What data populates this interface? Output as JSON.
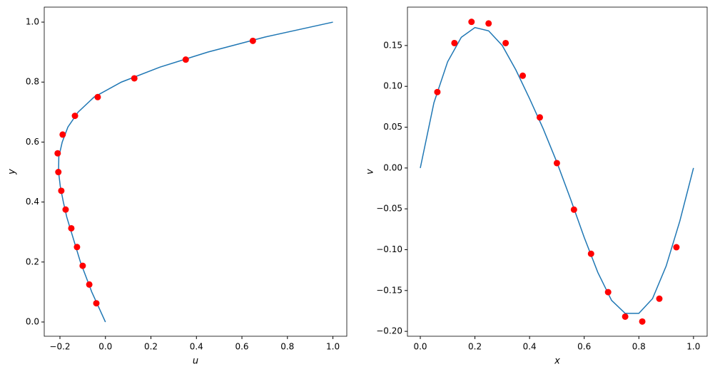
{
  "chart_data": [
    {
      "type": "line",
      "xlabel": "u",
      "ylabel": "y",
      "xlim": [
        -0.269,
        1.061
      ],
      "ylim": [
        -0.0475,
        1.05
      ],
      "xticks": [
        {
          "value": -0.2,
          "label": "−0.2"
        },
        {
          "value": 0,
          "label": "0.0"
        },
        {
          "value": 0.2,
          "label": "0.2"
        },
        {
          "value": 0.4,
          "label": "0.4"
        },
        {
          "value": 0.6,
          "label": "0.6"
        },
        {
          "value": 0.8,
          "label": "0.8"
        },
        {
          "value": 1,
          "label": "1.0"
        }
      ],
      "yticks": [
        {
          "value": 0,
          "label": "0.0"
        },
        {
          "value": 0.2,
          "label": "0.2"
        },
        {
          "value": 0.4,
          "label": "0.4"
        },
        {
          "value": 0.6,
          "label": "0.6"
        },
        {
          "value": 0.8,
          "label": "0.8"
        },
        {
          "value": 1,
          "label": "1.0"
        }
      ],
      "line": {
        "color": "#1f77b4",
        "x": [
          0,
          -0.03,
          -0.06,
          -0.085,
          -0.11,
          -0.13,
          -0.15,
          -0.17,
          -0.185,
          -0.198,
          -0.206,
          -0.205,
          -0.19,
          -0.165,
          -0.12,
          -0.05,
          0.07,
          0.24,
          0.45,
          0.7,
          1.0
        ],
        "y": [
          0,
          0.05,
          0.1,
          0.15,
          0.2,
          0.25,
          0.3,
          0.35,
          0.4,
          0.45,
          0.5,
          0.55,
          0.6,
          0.65,
          0.7,
          0.75,
          0.8,
          0.85,
          0.9,
          0.95,
          1.0
        ]
      },
      "points": {
        "color": "#ff0000",
        "x": [
          -0.04,
          -0.071,
          -0.1,
          -0.125,
          -0.15,
          -0.175,
          -0.194,
          -0.207,
          -0.21,
          -0.188,
          -0.134,
          -0.034,
          0.127,
          0.353,
          0.648
        ],
        "y": [
          0.0625,
          0.125,
          0.1875,
          0.25,
          0.3125,
          0.375,
          0.4375,
          0.5,
          0.5625,
          0.625,
          0.6875,
          0.75,
          0.8125,
          0.875,
          0.9375
        ]
      }
    },
    {
      "type": "line",
      "xlabel": "x",
      "ylabel": "v",
      "xlim": [
        -0.047,
        1.05
      ],
      "ylim": [
        -0.206,
        0.197
      ],
      "xticks": [
        {
          "value": 0,
          "label": "0.0"
        },
        {
          "value": 0.2,
          "label": "0.2"
        },
        {
          "value": 0.4,
          "label": "0.4"
        },
        {
          "value": 0.6,
          "label": "0.6"
        },
        {
          "value": 0.8,
          "label": "0.8"
        },
        {
          "value": 1,
          "label": "1.0"
        }
      ],
      "yticks": [
        {
          "value": -0.2,
          "label": "−0.20"
        },
        {
          "value": -0.15,
          "label": "−0.15"
        },
        {
          "value": -0.1,
          "label": "−0.10"
        },
        {
          "value": -0.05,
          "label": "−0.05"
        },
        {
          "value": 0,
          "label": "0.00"
        },
        {
          "value": 0.05,
          "label": "0.05"
        },
        {
          "value": 0.1,
          "label": "0.10"
        },
        {
          "value": 0.15,
          "label": "0.15"
        }
      ],
      "line": {
        "color": "#1f77b4",
        "x": [
          0,
          0.05,
          0.1,
          0.15,
          0.2,
          0.25,
          0.3,
          0.35,
          0.4,
          0.45,
          0.5,
          0.55,
          0.6,
          0.65,
          0.7,
          0.75,
          0.8,
          0.85,
          0.9,
          0.95,
          1.0
        ],
        "y": [
          0,
          0.08,
          0.13,
          0.16,
          0.172,
          0.168,
          0.15,
          0.12,
          0.085,
          0.048,
          0.007,
          -0.038,
          -0.085,
          -0.128,
          -0.162,
          -0.178,
          -0.178,
          -0.16,
          -0.12,
          -0.065,
          0
        ]
      },
      "points": {
        "color": "#ff0000",
        "x": [
          0.0625,
          0.125,
          0.1875,
          0.25,
          0.3125,
          0.375,
          0.4375,
          0.5,
          0.5625,
          0.625,
          0.6875,
          0.75,
          0.8125,
          0.875,
          0.9375
        ],
        "y": [
          0.093,
          0.153,
          0.179,
          0.177,
          0.153,
          0.113,
          0.062,
          0.006,
          -0.051,
          -0.105,
          -0.152,
          -0.182,
          -0.188,
          -0.16,
          -0.097
        ]
      }
    }
  ]
}
